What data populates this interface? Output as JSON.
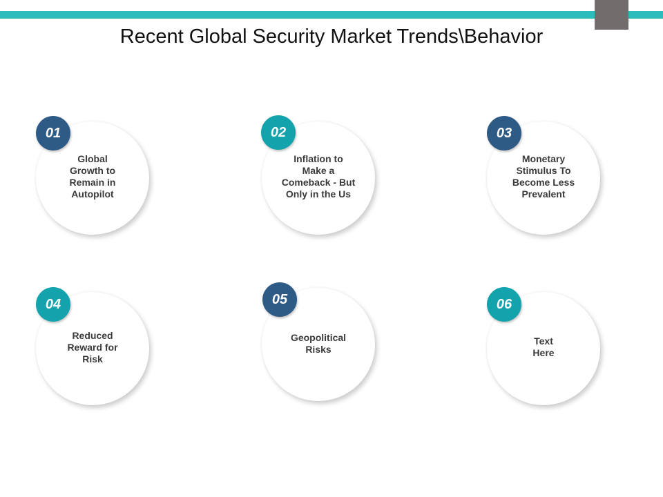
{
  "slide": {
    "title": "Recent Global Security Market Trends\\Behavior"
  },
  "colors": {
    "accent_teal": "#2bbcbb",
    "corner_gray": "#726c6c",
    "badge_navy": "#2e5b86",
    "badge_teal": "#13a3ad"
  },
  "items": [
    {
      "number": "01",
      "text": "Global\nGrowth to\nRemain in\nAutopilot",
      "badge_color": "navy"
    },
    {
      "number": "02",
      "text": "Inflation to\nMake a\nComeback - But\nOnly in the Us",
      "badge_color": "teal"
    },
    {
      "number": "03",
      "text": "Monetary\nStimulus To\nBecome Less\nPrevalent",
      "badge_color": "navy"
    },
    {
      "number": "04",
      "text": "Reduced\nReward for\nRisk",
      "badge_color": "teal"
    },
    {
      "number": "05",
      "text": "Geopolitical\nRisks",
      "badge_color": "navy"
    },
    {
      "number": "06",
      "text": "Text\nHere",
      "badge_color": "teal"
    }
  ]
}
